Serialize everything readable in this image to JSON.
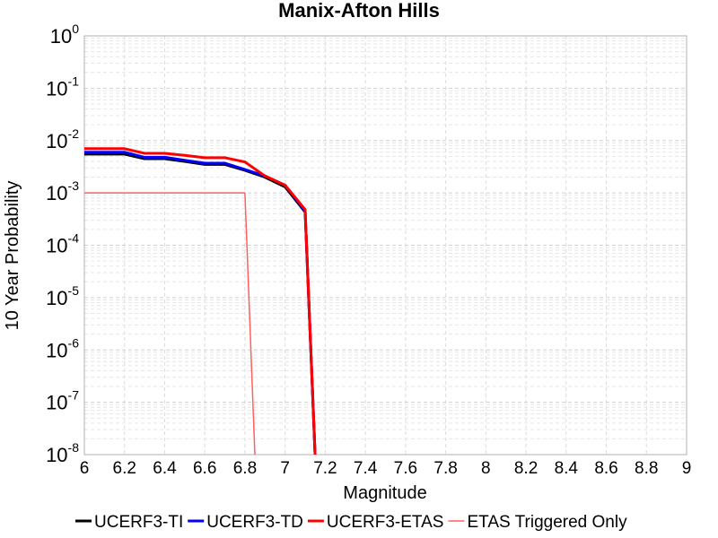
{
  "chart_data": {
    "type": "line",
    "title": "Manix-Afton Hills",
    "xlabel": "Magnitude",
    "ylabel": "10 Year Probability",
    "xlim": [
      6,
      9
    ],
    "ylim": [
      1e-08,
      1
    ],
    "yscale": "log",
    "grid": true,
    "legend_position": "bottom",
    "x_ticks": [
      "6",
      "6.2",
      "6.4",
      "6.6",
      "6.8",
      "7",
      "7.2",
      "7.4",
      "7.6",
      "7.8",
      "8",
      "8.2",
      "8.4",
      "8.6",
      "8.8",
      "9"
    ],
    "y_ticks": [
      {
        "base": "10",
        "exp": "0",
        "value": 1
      },
      {
        "base": "10",
        "exp": "-1",
        "value": 0.1
      },
      {
        "base": "10",
        "exp": "-2",
        "value": 0.01
      },
      {
        "base": "10",
        "exp": "-3",
        "value": 0.001
      },
      {
        "base": "10",
        "exp": "-4",
        "value": 0.0001
      },
      {
        "base": "10",
        "exp": "-5",
        "value": 1e-05
      },
      {
        "base": "10",
        "exp": "-6",
        "value": 1e-06
      },
      {
        "base": "10",
        "exp": "-7",
        "value": 1e-07
      },
      {
        "base": "10",
        "exp": "-8",
        "value": 1e-08
      }
    ],
    "series": [
      {
        "name": "UCERF3-TI",
        "color": "#000000",
        "width": 3,
        "x": [
          6.0,
          6.1,
          6.2,
          6.3,
          6.4,
          6.5,
          6.6,
          6.7,
          6.8,
          6.9,
          7.0,
          7.1,
          7.15
        ],
        "y": [
          0.0055,
          0.0055,
          0.0055,
          0.0045,
          0.0045,
          0.004,
          0.0035,
          0.0035,
          0.0027,
          0.002,
          0.0013,
          0.00043,
          1e-09
        ]
      },
      {
        "name": "UCERF3-TD",
        "color": "#0000ff",
        "width": 3,
        "x": [
          6.0,
          6.1,
          6.2,
          6.3,
          6.4,
          6.5,
          6.6,
          6.7,
          6.8,
          6.9,
          7.0,
          7.1,
          7.15
        ],
        "y": [
          0.006,
          0.006,
          0.006,
          0.0048,
          0.0048,
          0.0042,
          0.0037,
          0.0037,
          0.0028,
          0.0021,
          0.0014,
          0.00045,
          1e-09
        ]
      },
      {
        "name": "UCERF3-ETAS",
        "color": "#ff0000",
        "width": 3,
        "x": [
          6.0,
          6.1,
          6.2,
          6.3,
          6.4,
          6.5,
          6.6,
          6.7,
          6.8,
          6.9,
          7.0,
          7.1,
          7.15
        ],
        "y": [
          0.007,
          0.007,
          0.007,
          0.0057,
          0.0057,
          0.0052,
          0.0047,
          0.0047,
          0.0039,
          0.0021,
          0.0014,
          0.00048,
          1e-09
        ]
      },
      {
        "name": "ETAS Triggered Only",
        "color": "#ff6060",
        "width": 1.5,
        "x": [
          6.0,
          6.1,
          6.2,
          6.3,
          6.4,
          6.5,
          6.6,
          6.7,
          6.8,
          6.85
        ],
        "y": [
          0.001,
          0.001,
          0.001,
          0.001,
          0.001,
          0.001,
          0.001,
          0.001,
          0.001,
          1e-09
        ]
      }
    ]
  }
}
